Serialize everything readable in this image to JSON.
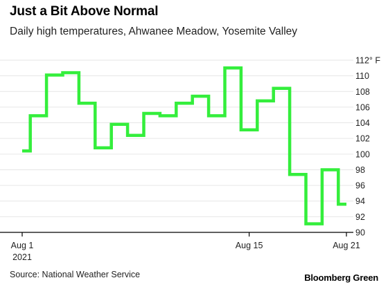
{
  "title": "Just a Bit Above Normal",
  "subtitle": "Daily high temperatures, Ahwanee Meadow, Yosemite Valley",
  "source": "Source: National Weather Service",
  "brand": "Bloomberg Green",
  "colors": {
    "line": "#34ee3c",
    "grid": "#e6e6e6",
    "axis": "#000000",
    "text": "#222222"
  },
  "chart_data": {
    "type": "line",
    "step": true,
    "x_start_date": "2021-08-01",
    "y_unit_label": "112° F",
    "ylim": [
      90,
      112
    ],
    "y_ticks": [
      {
        "value": 112,
        "label": "112° F"
      },
      {
        "value": 110,
        "label": "110"
      },
      {
        "value": 108,
        "label": "108"
      },
      {
        "value": 106,
        "label": "106"
      },
      {
        "value": 104,
        "label": "104"
      },
      {
        "value": 102,
        "label": "102"
      },
      {
        "value": 100,
        "label": "100"
      },
      {
        "value": 98,
        "label": "98"
      },
      {
        "value": 96,
        "label": "96"
      },
      {
        "value": 94,
        "label": "94"
      },
      {
        "value": 92,
        "label": "92"
      },
      {
        "value": 90,
        "label": "90"
      }
    ],
    "x_ticks": [
      {
        "day": 1,
        "label": "Aug 1",
        "label2": "2021"
      },
      {
        "day": 15,
        "label": "Aug 15"
      },
      {
        "day": 21,
        "label": "Aug 21"
      }
    ],
    "grid": true,
    "series": [
      {
        "values": [
          {
            "x": "2021-08-01",
            "y": 100.4
          },
          {
            "x": "2021-08-02",
            "y": 104.9
          },
          {
            "x": "2021-08-03",
            "y": 110.1
          },
          {
            "x": "2021-08-04",
            "y": 110.4
          },
          {
            "x": "2021-08-05",
            "y": 106.5
          },
          {
            "x": "2021-08-06",
            "y": 100.8
          },
          {
            "x": "2021-08-07",
            "y": 103.8
          },
          {
            "x": "2021-08-08",
            "y": 102.4
          },
          {
            "x": "2021-08-09",
            "y": 105.2
          },
          {
            "x": "2021-08-10",
            "y": 104.9
          },
          {
            "x": "2021-08-11",
            "y": 106.5
          },
          {
            "x": "2021-08-12",
            "y": 107.4
          },
          {
            "x": "2021-08-13",
            "y": 104.9
          },
          {
            "x": "2021-08-14",
            "y": 111.0
          },
          {
            "x": "2021-08-15",
            "y": 103.1
          },
          {
            "x": "2021-08-16",
            "y": 106.8
          },
          {
            "x": "2021-08-17",
            "y": 108.4
          },
          {
            "x": "2021-08-18",
            "y": 97.4
          },
          {
            "x": "2021-08-19",
            "y": 91.1
          },
          {
            "x": "2021-08-20",
            "y": 98.0
          },
          {
            "x": "2021-08-21",
            "y": 93.6
          }
        ]
      }
    ]
  }
}
